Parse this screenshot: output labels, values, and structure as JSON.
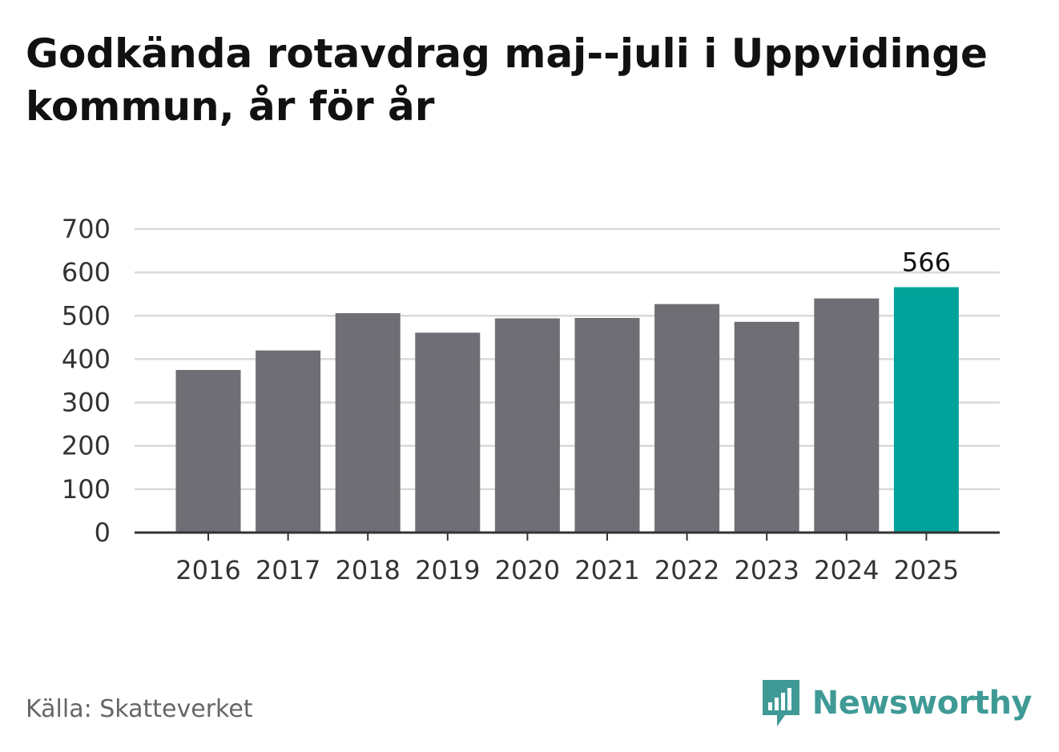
{
  "title": "Godkända rotavdrag maj--juli i Uppvidinge kommun, år för år",
  "source": "Källa: Skatteverket",
  "brand": "Newsworthy",
  "colors": {
    "bar": "#6f6e74",
    "highlight": "#00a39a",
    "grid": "#d9d9d9",
    "axis": "#333333",
    "brand": "#3f9a96"
  },
  "chart_data": {
    "type": "bar",
    "categories": [
      "2016",
      "2017",
      "2018",
      "2019",
      "2020",
      "2021",
      "2022",
      "2023",
      "2024",
      "2025"
    ],
    "values": [
      375,
      420,
      506,
      461,
      494,
      495,
      527,
      486,
      540,
      566
    ],
    "highlight_index": 9,
    "data_labels": [
      {
        "index": 9,
        "text": "566"
      }
    ],
    "yticks": [
      0,
      100,
      200,
      300,
      400,
      500,
      600,
      700
    ],
    "ylim": [
      0,
      700
    ],
    "grid": true
  }
}
